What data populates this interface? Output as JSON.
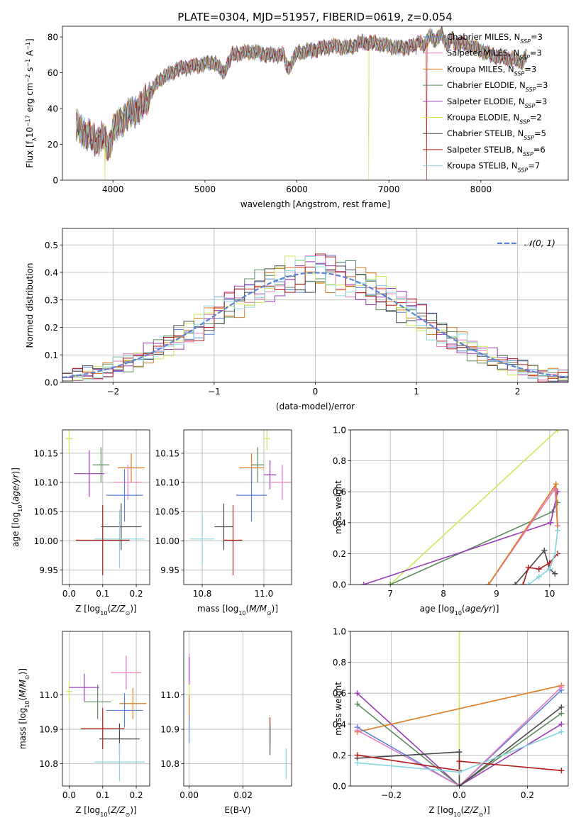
{
  "figure": {
    "title": "PLATE=0304, MJD=51957, FIBERID=0619, z=0.054"
  },
  "colors": {
    "Chabrier MILES": "#5b84d6",
    "Salpeter MILES": "#e97cbf",
    "Kroupa MILES": "#e07b22",
    "Chabrier ELODIE": "#5e8c5e",
    "Salpeter ELODIE": "#9a3bb8",
    "Kroupa ELODIE": "#cde85a",
    "Chabrier STELIB": "#4a4a4a",
    "Salpeter STELIB": "#b01c1c",
    "Kroupa STELIB": "#86d6e0",
    "gaussian": "#5b84d6"
  },
  "chart_data": [
    {
      "id": "spectrum",
      "type": "line",
      "title": "PLATE=0304, MJD=51957, FIBERID=0619, z=0.054",
      "xlabel": "wavelength [Angstrom, rest frame]",
      "ylabel": "Flux [f_λ 10^-17 erg cm^-2 s^-1 A^-1]",
      "xlim": [
        3450,
        8950
      ],
      "ylim": [
        0,
        86
      ],
      "xticks": [
        4000,
        5000,
        6000,
        7000,
        8000
      ],
      "yticks": [
        0,
        20,
        40,
        60,
        80
      ],
      "grid": false,
      "legend_position": "right",
      "series": [
        {
          "name": "Chabrier MILES",
          "nssp": 3
        },
        {
          "name": "Salpeter MILES",
          "nssp": 3
        },
        {
          "name": "Kroupa MILES",
          "nssp": 3
        },
        {
          "name": "Chabrier ELODIE",
          "nssp": 3
        },
        {
          "name": "Salpeter ELODIE",
          "nssp": 3
        },
        {
          "name": "Kroupa ELODIE",
          "nssp": 2
        },
        {
          "name": "Chabrier STELIB",
          "nssp": 5
        },
        {
          "name": "Salpeter STELIB",
          "nssp": 6
        },
        {
          "name": "Kroupa STELIB",
          "nssp": 7
        }
      ],
      "continuum": [
        [
          3600,
          30
        ],
        [
          3700,
          26
        ],
        [
          3800,
          22
        ],
        [
          3900,
          24
        ],
        [
          3950,
          18
        ],
        [
          4000,
          28
        ],
        [
          4100,
          34
        ],
        [
          4200,
          38
        ],
        [
          4300,
          40
        ],
        [
          4350,
          44
        ],
        [
          4500,
          56
        ],
        [
          4700,
          62
        ],
        [
          4900,
          64
        ],
        [
          5100,
          66
        ],
        [
          5200,
          60
        ],
        [
          5300,
          70
        ],
        [
          5500,
          72
        ],
        [
          5700,
          70
        ],
        [
          5850,
          70
        ],
        [
          5900,
          62
        ],
        [
          6000,
          71
        ],
        [
          6200,
          73
        ],
        [
          6400,
          75
        ],
        [
          6560,
          74
        ],
        [
          6700,
          77
        ],
        [
          6900,
          76
        ],
        [
          7100,
          74
        ],
        [
          7300,
          75
        ],
        [
          7500,
          80
        ],
        [
          7600,
          79
        ],
        [
          7700,
          77
        ],
        [
          7900,
          75
        ],
        [
          8100,
          70
        ],
        [
          8300,
          68
        ],
        [
          8450,
          66
        ],
        [
          8500,
          70
        ]
      ],
      "dropouts": [
        {
          "series": "Kroupa ELODIE",
          "x": 3910
        },
        {
          "series": "Kroupa ELODIE",
          "x": 6780
        },
        {
          "series": "Salpeter STELIB",
          "x": 7410
        }
      ]
    },
    {
      "id": "residuals",
      "type": "histogram",
      "xlabel": "(data-model)/error",
      "ylabel": "Normed distribution",
      "xlim": [
        -2.5,
        2.5
      ],
      "ylim": [
        0,
        0.56
      ],
      "xticks": [
        -2,
        -1,
        0,
        1,
        2
      ],
      "yticks": [
        0.0,
        0.1,
        0.2,
        0.3,
        0.4,
        0.5
      ],
      "grid": true,
      "bin_width": 0.1,
      "legend": [
        {
          "label": "𝒩(0, 1)",
          "style": "dashed"
        }
      ],
      "legend_position": "top-right"
    },
    {
      "id": "age-vs-Z",
      "type": "scatter",
      "xlabel": "Z [log10(Z/Z⊙)]",
      "ylabel": "age  [log10(age/yr)]",
      "xlim": [
        -0.02,
        0.24
      ],
      "ylim": [
        9.925,
        10.19
      ],
      "xticks": [
        0.0,
        0.1,
        0.2
      ],
      "yticks": [
        9.95,
        10.0,
        10.05,
        10.1,
        10.15
      ],
      "grid": true,
      "points": [
        {
          "series": "Kroupa ELODIE",
          "x": 0.0,
          "xerr": 0.01,
          "y": 10.175,
          "yerr": 0.025
        },
        {
          "series": "Chabrier ELODIE",
          "x": 0.095,
          "xerr": 0.025,
          "y": 10.13,
          "yerr": 0.03
        },
        {
          "series": "Salpeter ELODIE",
          "x": 0.06,
          "xerr": 0.045,
          "y": 10.115,
          "yerr": 0.04
        },
        {
          "series": "Kroupa MILES",
          "x": 0.185,
          "xerr": 0.04,
          "y": 10.125,
          "yerr": 0.025
        },
        {
          "series": "Salpeter MILES",
          "x": 0.175,
          "xerr": 0.045,
          "y": 10.1,
          "yerr": 0.03
        },
        {
          "series": "Chabrier MILES",
          "x": 0.165,
          "xerr": 0.055,
          "y": 10.078,
          "yerr": 0.045
        },
        {
          "series": "Chabrier STELIB",
          "x": 0.155,
          "xerr": 0.06,
          "y": 10.024,
          "yerr": 0.04
        },
        {
          "series": "Kroupa STELIB",
          "x": 0.15,
          "xerr": 0.075,
          "y": 10.003,
          "yerr": 0.05
        },
        {
          "series": "Salpeter STELIB",
          "x": 0.1,
          "xerr": 0.08,
          "y": 10.001,
          "yerr": 0.06
        }
      ]
    },
    {
      "id": "age-vs-mass",
      "type": "scatter",
      "xlabel": "mass [log10(M/M⊙)]",
      "ylabel": "",
      "xlim": [
        10.74,
        11.09
      ],
      "ylim": [
        9.925,
        10.19
      ],
      "xticks": [
        10.8,
        11.0
      ],
      "yticks": [
        9.95,
        10.0,
        10.05,
        10.1,
        10.15
      ],
      "grid": true,
      "points": [
        {
          "series": "Kroupa ELODIE",
          "x": 11.01,
          "xerr": 0.01,
          "y": 10.175,
          "yerr": 0.02
        },
        {
          "series": "Chabrier ELODIE",
          "x": 10.98,
          "xerr": 0.02,
          "y": 10.13,
          "yerr": 0.03
        },
        {
          "series": "Salpeter ELODIE",
          "x": 11.02,
          "xerr": 0.02,
          "y": 10.113,
          "yerr": 0.025
        },
        {
          "series": "Kroupa MILES",
          "x": 10.96,
          "xerr": 0.04,
          "y": 10.125,
          "yerr": 0.025
        },
        {
          "series": "Salpeter MILES",
          "x": 11.06,
          "xerr": 0.04,
          "y": 10.1,
          "yerr": 0.03
        },
        {
          "series": "Chabrier MILES",
          "x": 10.96,
          "xerr": 0.05,
          "y": 10.078,
          "yerr": 0.045
        },
        {
          "series": "Chabrier STELIB",
          "x": 10.87,
          "xerr": 0.03,
          "y": 10.024,
          "yerr": 0.04
        },
        {
          "series": "Kroupa STELIB",
          "x": 10.8,
          "xerr": 0.04,
          "y": 10.003,
          "yerr": 0.045
        },
        {
          "series": "Salpeter STELIB",
          "x": 10.9,
          "xerr": 0.03,
          "y": 10.001,
          "yerr": 0.06
        }
      ]
    },
    {
      "id": "weight-vs-age",
      "type": "line",
      "xlabel": "age  [log10(age/yr)]",
      "ylabel": "mass weight",
      "xlim": [
        6.25,
        10.35
      ],
      "ylim": [
        0,
        1
      ],
      "xticks": [
        7,
        8,
        9,
        10
      ],
      "yticks": [
        0.0,
        0.2,
        0.4,
        0.6,
        0.8,
        1.0
      ],
      "grid": true,
      "series": [
        {
          "name": "Kroupa ELODIE",
          "x": [
            7.0,
            10.15
          ],
          "y": [
            0.0,
            1.0
          ]
        },
        {
          "name": "Chabrier ELODIE",
          "x": [
            7.0,
            10.05,
            10.15
          ],
          "y": [
            0.0,
            0.47,
            0.53
          ]
        },
        {
          "name": "Salpeter ELODIE",
          "x": [
            6.5,
            10.02,
            10.15
          ],
          "y": [
            0.0,
            0.4,
            0.6
          ]
        },
        {
          "name": "Chabrier MILES",
          "x": [
            8.85,
            10.1,
            10.15
          ],
          "y": [
            0.0,
            0.62,
            0.38
          ]
        },
        {
          "name": "Salpeter MILES",
          "x": [
            8.85,
            10.1,
            10.15
          ],
          "y": [
            0.0,
            0.62,
            0.38
          ]
        },
        {
          "name": "Kroupa MILES",
          "x": [
            8.85,
            10.12,
            10.15
          ],
          "y": [
            0.0,
            0.65,
            0.35
          ]
        },
        {
          "name": "Chabrier STELIB",
          "x": [
            9.35,
            9.9,
            10.0,
            10.1
          ],
          "y": [
            0.0,
            0.22,
            0.1,
            0.07
          ]
        },
        {
          "name": "Salpeter STELIB",
          "x": [
            9.5,
            9.6,
            9.8,
            10.0,
            10.15
          ],
          "y": [
            0.0,
            0.11,
            0.1,
            0.14,
            0.2
          ]
        },
        {
          "name": "Kroupa STELIB",
          "x": [
            9.6,
            9.8,
            10.0,
            10.1,
            10.15
          ],
          "y": [
            0.0,
            0.05,
            0.1,
            0.2,
            0.35
          ]
        }
      ]
    },
    {
      "id": "mass-vs-Z",
      "type": "scatter",
      "xlabel": "Z [log10(Z/Z⊙)]",
      "ylabel": "mass [log10(M/M⊙)]",
      "xlim": [
        -0.02,
        0.24
      ],
      "ylim": [
        10.735,
        11.185
      ],
      "xticks": [
        0.0,
        0.1,
        0.2
      ],
      "yticks": [
        10.8,
        10.9,
        11.0
      ],
      "grid": true,
      "points": [
        {
          "series": "Kroupa ELODIE",
          "x": 0.0,
          "xerr": 0.01,
          "y": 11.01,
          "yerr": 0.03
        },
        {
          "series": "Salpeter ELODIE",
          "x": 0.045,
          "xerr": 0.045,
          "y": 11.022,
          "yerr": 0.04
        },
        {
          "series": "Chabrier ELODIE",
          "x": 0.085,
          "xerr": 0.04,
          "y": 10.98,
          "yerr": 0.05
        },
        {
          "series": "Salpeter MILES",
          "x": 0.17,
          "xerr": 0.045,
          "y": 11.065,
          "yerr": 0.05
        },
        {
          "series": "Kroupa MILES",
          "x": 0.19,
          "xerr": 0.04,
          "y": 10.975,
          "yerr": 0.045
        },
        {
          "series": "Chabrier MILES",
          "x": 0.165,
          "xerr": 0.055,
          "y": 10.955,
          "yerr": 0.05
        },
        {
          "series": "Salpeter STELIB",
          "x": 0.1,
          "xerr": 0.065,
          "y": 10.902,
          "yerr": 0.06
        },
        {
          "series": "Chabrier STELIB",
          "x": 0.15,
          "xerr": 0.06,
          "y": 10.872,
          "yerr": 0.045
        },
        {
          "series": "Kroupa STELIB",
          "x": 0.15,
          "xerr": 0.075,
          "y": 10.805,
          "yerr": 0.055
        }
      ]
    },
    {
      "id": "mass-vs-EBV",
      "type": "scatter",
      "xlabel": "E(B-V)",
      "ylabel": "",
      "xlim": [
        -0.002,
        0.038
      ],
      "ylim": [
        10.735,
        11.185
      ],
      "xticks": [
        0.0,
        0.02
      ],
      "yticks": [
        10.8,
        10.9,
        11.0
      ],
      "grid": true,
      "points": [
        {
          "series": "Salpeter MILES",
          "x": 0.0,
          "xerr": 0.0,
          "y": 11.08,
          "yerr": 0.04
        },
        {
          "series": "Salpeter ELODIE",
          "x": 0.0,
          "xerr": 0.0,
          "y": 11.07,
          "yerr": 0.04
        },
        {
          "series": "Kroupa ELODIE",
          "x": 0.0,
          "xerr": 0.0,
          "y": 11.0,
          "yerr": 0.03
        },
        {
          "series": "Chabrier ELODIE",
          "x": 0.0,
          "xerr": 0.0,
          "y": 10.96,
          "yerr": 0.03
        },
        {
          "series": "Kroupa MILES",
          "x": 0.0,
          "xerr": 0.0,
          "y": 10.96,
          "yerr": 0.04
        },
        {
          "series": "Chabrier MILES",
          "x": 0.0,
          "xerr": 0.0,
          "y": 10.9,
          "yerr": 0.04
        },
        {
          "series": "Salpeter STELIB",
          "x": 0.03,
          "xerr": 0.0,
          "y": 10.895,
          "yerr": 0.04
        },
        {
          "series": "Chabrier STELIB",
          "x": 0.03,
          "xerr": 0.0,
          "y": 10.87,
          "yerr": 0.045
        },
        {
          "series": "Kroupa STELIB",
          "x": 0.036,
          "xerr": 0.0,
          "y": 10.8,
          "yerr": 0.045
        }
      ]
    },
    {
      "id": "weight-vs-Z",
      "type": "line",
      "xlabel": "Z [log10(Z/Z⊙)]",
      "ylabel": "mass weight",
      "xlim": [
        -0.32,
        0.32
      ],
      "ylim": [
        0,
        1
      ],
      "xticks": [
        -0.2,
        0.0,
        0.2
      ],
      "yticks": [
        0.0,
        0.2,
        0.4,
        0.6,
        0.8,
        1.0
      ],
      "grid": true,
      "series": [
        {
          "name": "Kroupa ELODIE",
          "x": [
            0.0,
            0.0
          ],
          "y": [
            0.0,
            1.0
          ]
        },
        {
          "name": "Salpeter ELODIE",
          "x": [
            -0.3,
            0.0,
            0.3
          ],
          "y": [
            0.6,
            0.0,
            0.4
          ]
        },
        {
          "name": "Chabrier ELODIE",
          "x": [
            -0.3,
            0.0,
            0.3
          ],
          "y": [
            0.53,
            0.0,
            0.47
          ]
        },
        {
          "name": "Kroupa MILES",
          "x": [
            -0.3,
            0.3
          ],
          "y": [
            0.35,
            0.65
          ]
        },
        {
          "name": "Chabrier MILES",
          "x": [
            -0.3,
            0.0,
            0.3
          ],
          "y": [
            0.38,
            0.0,
            0.62
          ]
        },
        {
          "name": "Salpeter MILES",
          "x": [
            -0.3,
            0.0,
            0.3
          ],
          "y": [
            0.36,
            0.0,
            0.64
          ]
        },
        {
          "name": "Chabrier STELIB",
          "x": [
            -0.3,
            0.0,
            0.0,
            0.3
          ],
          "y": [
            0.18,
            0.22,
            0.0,
            0.51
          ]
        },
        {
          "name": "Salpeter STELIB",
          "x": [
            -0.3,
            0.0,
            0.0,
            0.3
          ],
          "y": [
            0.2,
            0.1,
            0.16,
            0.1
          ]
        },
        {
          "name": "Kroupa STELIB",
          "x": [
            -0.3,
            0.0,
            0.3
          ],
          "y": [
            0.15,
            0.09,
            0.35
          ]
        }
      ]
    }
  ]
}
